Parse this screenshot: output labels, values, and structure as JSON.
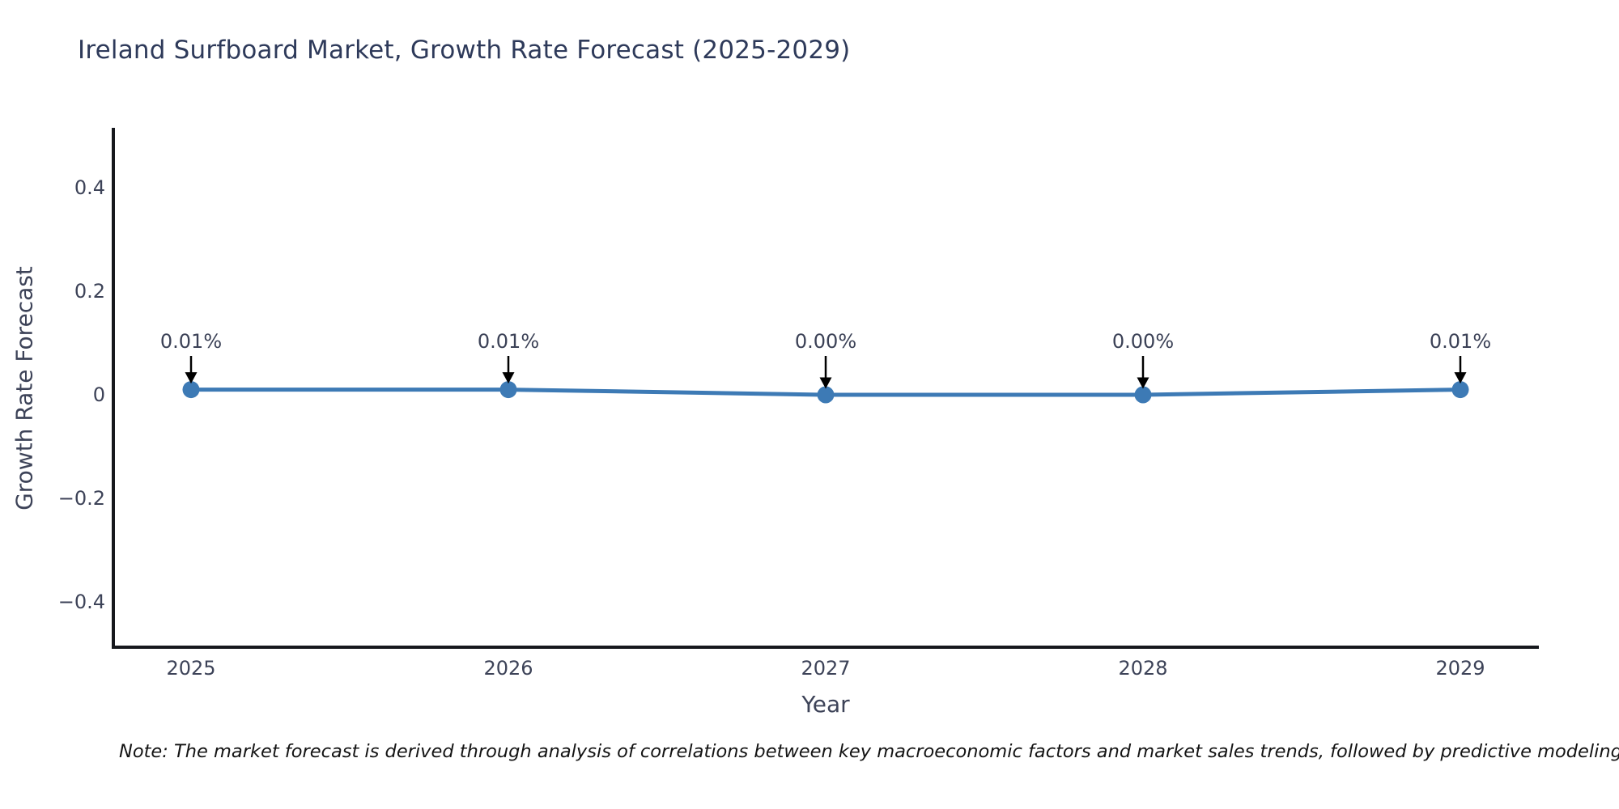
{
  "chart_data": {
    "type": "line",
    "title": "Ireland Surfboard Market, Growth Rate Forecast (2025-2029)",
    "xlabel": "Year",
    "ylabel": "Growth Rate Forecast",
    "categories": [
      "2025",
      "2026",
      "2027",
      "2028",
      "2029"
    ],
    "series": [
      {
        "name": "Growth Rate Forecast",
        "values": [
          0.01,
          0.01,
          0.0,
          0.0,
          0.01
        ],
        "point_labels": [
          "0.01%",
          "0.01%",
          "0.00%",
          "0.00%",
          "0.01%"
        ]
      }
    ],
    "ylim": [
      -0.5,
      0.5
    ],
    "yticks": [
      0.4,
      0.2,
      0,
      -0.2,
      -0.4
    ],
    "ytick_labels": [
      "0.4",
      "0.2",
      "0",
      "−0.2",
      "−0.4"
    ],
    "grid": false,
    "legend": "none",
    "colors": {
      "line": "#3d7ab5",
      "marker": "#3d7ab5",
      "annotation_text": "#3b4156",
      "annotation_arrow": "#000000",
      "tick_text": "#3d4358",
      "spine": "#16181d"
    }
  },
  "note": {
    "text": "Note: The market forecast is derived through analysis of correlations between key macroeconomic factors and market sales trends, followed by predictive modeling to project future sales."
  }
}
